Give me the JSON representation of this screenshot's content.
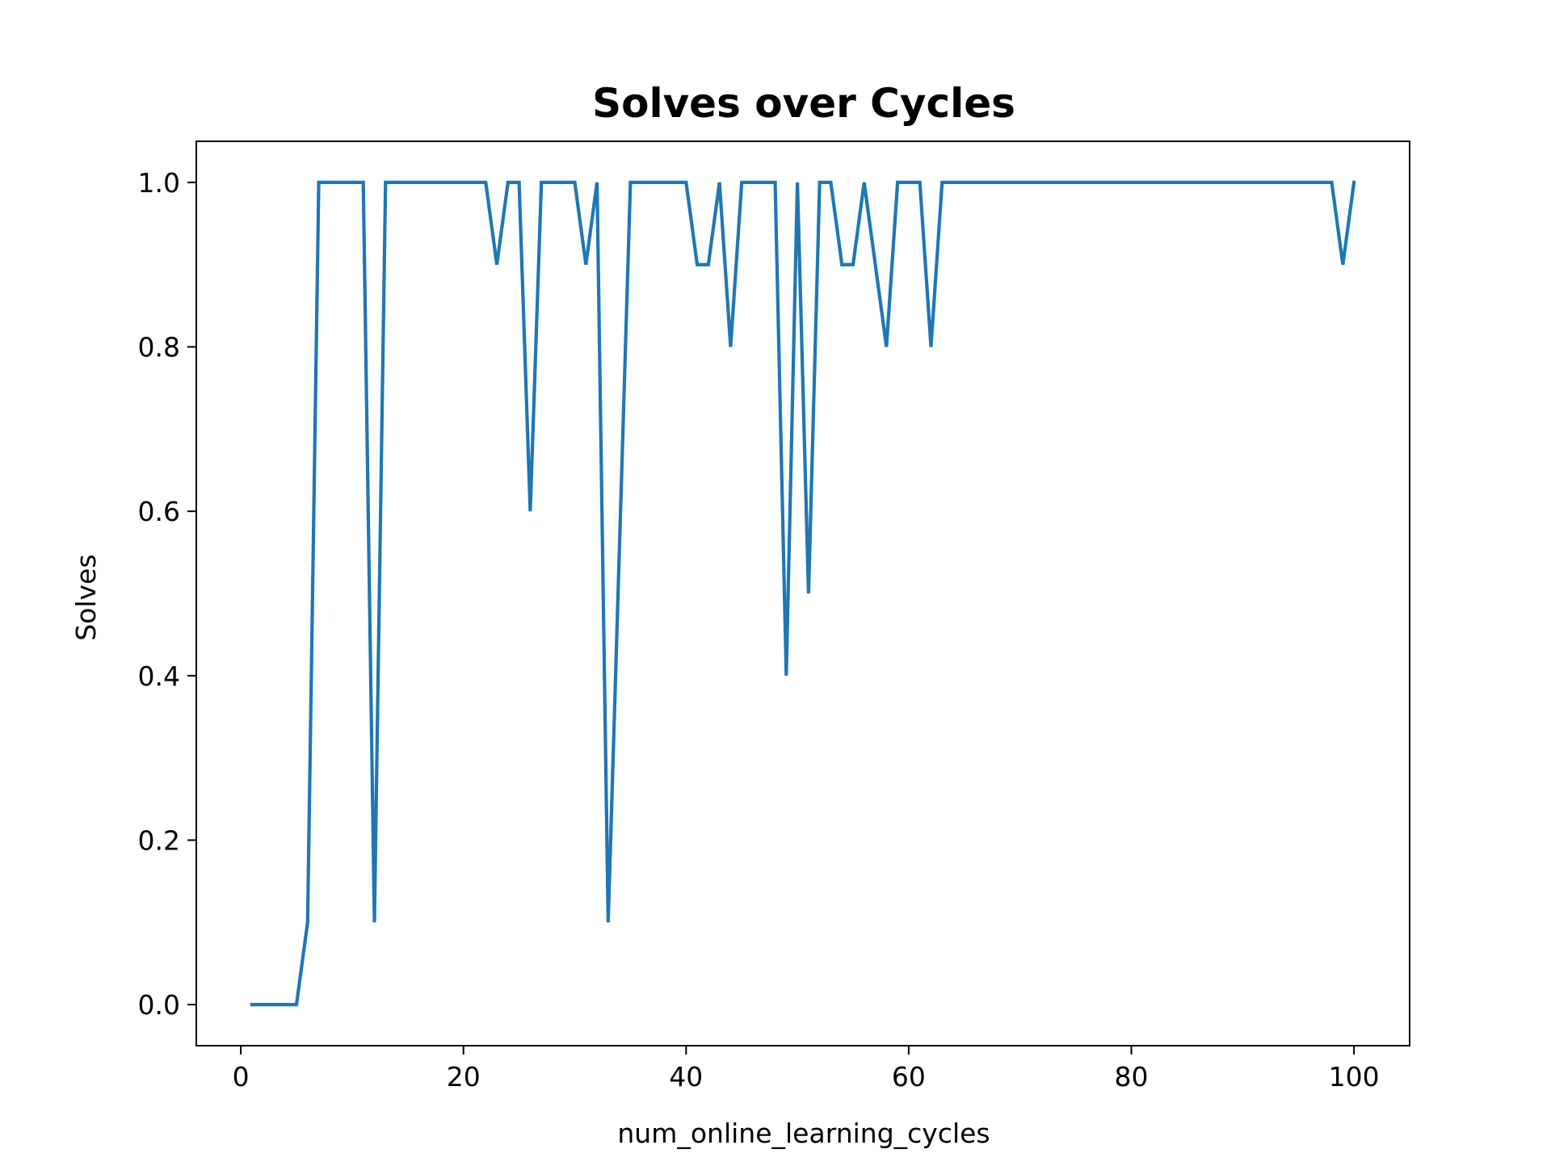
{
  "chart_data": {
    "type": "line",
    "title": "Solves over Cycles",
    "xlabel": "num_online_learning_cycles",
    "ylabel": "Solves",
    "xlim": [
      -4,
      105
    ],
    "ylim": [
      -0.05,
      1.05
    ],
    "x_ticks": [
      0,
      20,
      40,
      60,
      80,
      100
    ],
    "y_ticks": [
      0.0,
      0.2,
      0.4,
      0.6,
      0.8,
      1.0
    ],
    "x_tick_labels": [
      "0",
      "20",
      "40",
      "60",
      "80",
      "100"
    ],
    "y_tick_labels": [
      "0.0",
      "0.2",
      "0.4",
      "0.6",
      "0.8",
      "1.0"
    ],
    "grid": false,
    "series": [
      {
        "color": "#1f77b4",
        "x": [
          1,
          2,
          3,
          4,
          5,
          6,
          7,
          8,
          9,
          10,
          11,
          12,
          13,
          14,
          15,
          16,
          17,
          18,
          19,
          20,
          21,
          22,
          23,
          24,
          25,
          26,
          27,
          28,
          29,
          30,
          31,
          32,
          33,
          34,
          35,
          36,
          37,
          38,
          39,
          40,
          41,
          42,
          43,
          44,
          45,
          46,
          47,
          48,
          49,
          50,
          51,
          52,
          53,
          54,
          55,
          56,
          57,
          58,
          59,
          60,
          61,
          62,
          63,
          64,
          65,
          66,
          67,
          68,
          69,
          70,
          71,
          72,
          73,
          74,
          75,
          76,
          77,
          78,
          79,
          80,
          81,
          82,
          83,
          84,
          85,
          86,
          87,
          88,
          89,
          90,
          91,
          92,
          93,
          94,
          95,
          96,
          97,
          98,
          99,
          100
        ],
        "values": [
          0,
          0,
          0,
          0,
          0,
          0.1,
          1,
          1,
          1,
          1,
          1,
          0.1,
          1,
          1,
          1,
          1,
          1,
          1,
          1,
          1,
          1,
          1,
          0.9,
          1,
          1,
          0.6,
          1,
          1,
          1,
          1,
          0.9,
          1,
          0.1,
          0.55,
          1,
          1,
          1,
          1,
          1,
          1,
          0.9,
          0.9,
          1,
          0.8,
          1,
          1,
          1,
          1,
          0.4,
          1,
          0.5,
          1,
          1,
          0.9,
          0.9,
          1,
          0.9,
          0.8,
          1,
          1,
          1,
          0.8,
          1,
          1,
          1,
          1,
          1,
          1,
          1,
          1,
          1,
          1,
          1,
          1,
          1,
          1,
          1,
          1,
          1,
          1,
          1,
          1,
          1,
          1,
          1,
          1,
          1,
          1,
          1,
          1,
          1,
          1,
          1,
          1,
          1,
          1,
          1,
          1,
          0.9,
          1
        ]
      }
    ]
  }
}
